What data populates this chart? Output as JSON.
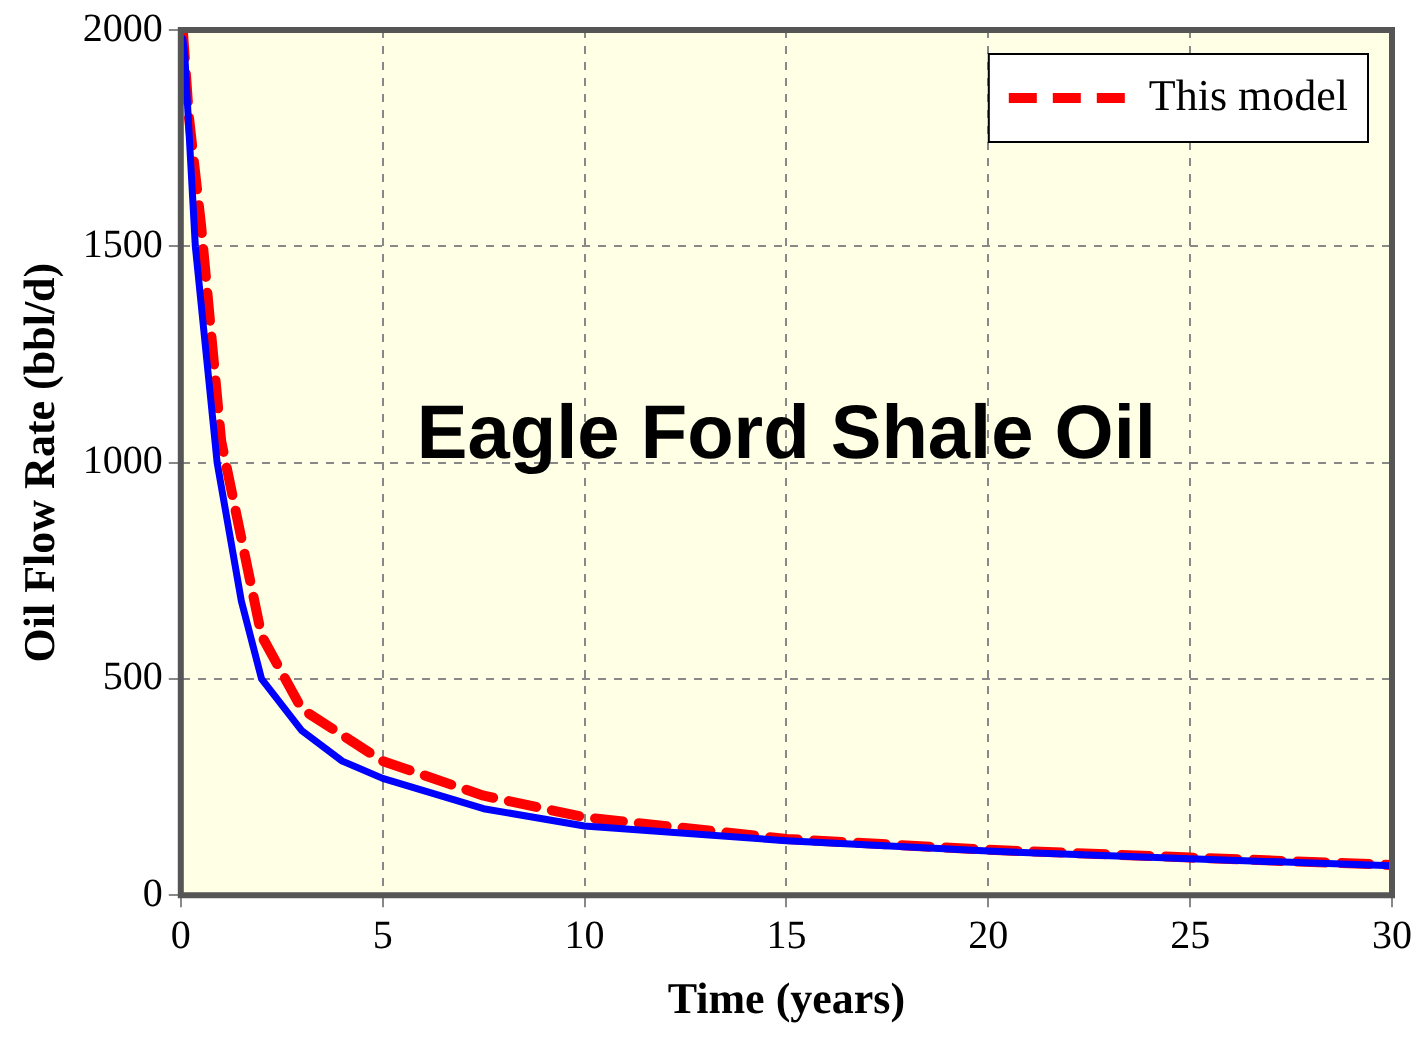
{
  "chart_data": {
    "type": "line",
    "xlabel": "Time (years)",
    "ylabel": "Oil Flow Rate (bbl/d)",
    "annotations": [
      "Eagle Ford Shale Oil"
    ],
    "xlim": [
      0,
      30
    ],
    "xticks": [
      0,
      5,
      10,
      15,
      20,
      25,
      30
    ],
    "ylim": [
      0,
      2000
    ],
    "yticks": [
      0,
      500,
      1000,
      1500,
      2000
    ],
    "grid": true,
    "legend": "top right",
    "marker": "none",
    "series": [
      {
        "color": "#0000ff",
        "line_style": "solid",
        "x": [
          0.05,
          0.1,
          0.36,
          0.9,
          1.5,
          2,
          3,
          4,
          5,
          7.5,
          10,
          15,
          20,
          25,
          30
        ],
        "values": [
          1980,
          1940,
          1500,
          1000,
          680,
          500,
          380,
          310,
          270,
          200,
          160,
          126,
          102,
          84,
          68
        ]
      },
      {
        "name": "This model",
        "color": "#ff0000",
        "line_style": "dashed",
        "x": [
          0.05,
          0.2,
          0.5,
          1,
          2,
          3,
          5,
          7.5,
          10,
          15,
          20,
          25,
          30
        ],
        "values": [
          2000,
          1800,
          1550,
          1050,
          600,
          430,
          310,
          230,
          180,
          130,
          105,
          87,
          70
        ]
      }
    ]
  }
}
